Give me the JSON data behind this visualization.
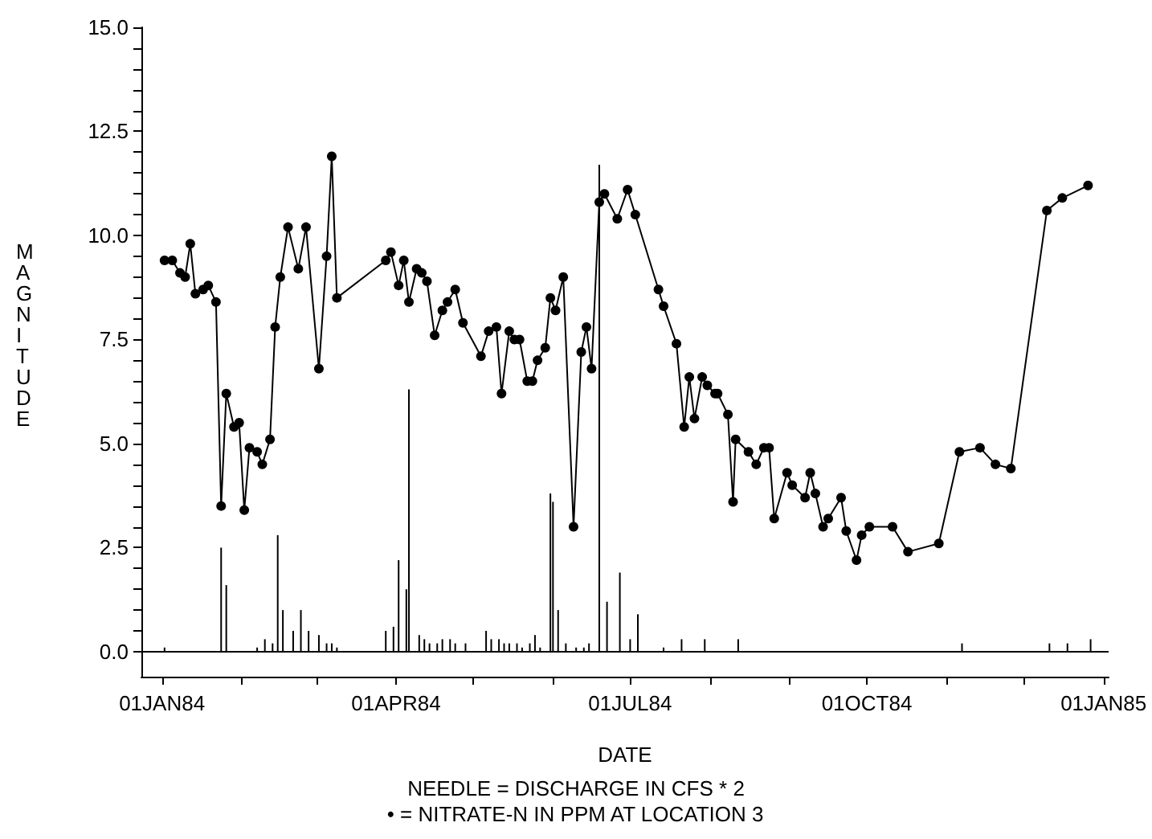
{
  "chart_data": {
    "type": "line",
    "xlabel": "DATE",
    "ylabel": "MAGNITUDE",
    "annotations": [
      "NEEDLE = DISCHARGE IN CFS * 2",
      "• = NITRATE-N IN PPM AT LOCATION 3"
    ],
    "xlim": [
      "1983-12-24",
      "1985-01-03"
    ],
    "xticks": [
      {
        "value": "1984-01-01",
        "label": "01JAN84"
      },
      {
        "value": "1984-02-01",
        "label": null
      },
      {
        "value": "1984-03-01",
        "label": null
      },
      {
        "value": "1984-04-01",
        "label": "01APR84"
      },
      {
        "value": "1984-05-01",
        "label": null
      },
      {
        "value": "1984-06-01",
        "label": null
      },
      {
        "value": "1984-07-01",
        "label": "01JUL84"
      },
      {
        "value": "1984-08-01",
        "label": null
      },
      {
        "value": "1984-09-01",
        "label": null
      },
      {
        "value": "1984-10-01",
        "label": "01OCT84"
      },
      {
        "value": "1984-11-01",
        "label": null
      },
      {
        "value": "1984-12-01",
        "label": null
      },
      {
        "value": "1985-01-01",
        "label": "01JAN85"
      }
    ],
    "ylim": [
      -0.6,
      15
    ],
    "yticks": [
      {
        "value": 0,
        "label": "0.0"
      },
      {
        "value": 0.5,
        "label": null
      },
      {
        "value": 1,
        "label": null
      },
      {
        "value": 1.5,
        "label": null
      },
      {
        "value": 2,
        "label": null
      },
      {
        "value": 2.5,
        "label": "2.5"
      },
      {
        "value": 3,
        "label": null
      },
      {
        "value": 3.5,
        "label": null
      },
      {
        "value": 4,
        "label": null
      },
      {
        "value": 4.5,
        "label": null
      },
      {
        "value": 5,
        "label": "5.0"
      },
      {
        "value": 5.5,
        "label": null
      },
      {
        "value": 6,
        "label": null
      },
      {
        "value": 6.5,
        "label": null
      },
      {
        "value": 7,
        "label": null
      },
      {
        "value": 7.5,
        "label": "7.5"
      },
      {
        "value": 8,
        "label": null
      },
      {
        "value": 8.5,
        "label": null
      },
      {
        "value": 9,
        "label": null
      },
      {
        "value": 9.5,
        "label": null
      },
      {
        "value": 10,
        "label": "10.0"
      },
      {
        "value": 10.5,
        "label": null
      },
      {
        "value": 11,
        "label": null
      },
      {
        "value": 11.5,
        "label": null
      },
      {
        "value": 12,
        "label": null
      },
      {
        "value": 12.5,
        "label": "12.5"
      },
      {
        "value": 13,
        "label": null
      },
      {
        "value": 13.5,
        "label": null
      },
      {
        "value": 14,
        "label": null
      },
      {
        "value": 14.5,
        "label": null
      },
      {
        "value": 15,
        "label": "15.0"
      }
    ],
    "grid": false,
    "ref_lines": [
      {
        "axis": "y",
        "value": 0,
        "color": "#000000"
      }
    ],
    "series": [
      {
        "type": "bar",
        "color": "#000000",
        "x": [
          "1984-01-02",
          "1984-01-24",
          "1984-01-26",
          "1984-02-07",
          "1984-02-10",
          "1984-02-13",
          "1984-02-15",
          "1984-02-17",
          "1984-02-21",
          "1984-02-24",
          "1984-02-27",
          "1984-03-02",
          "1984-03-05",
          "1984-03-07",
          "1984-03-09",
          "1984-03-28",
          "1984-03-31",
          "1984-04-02",
          "1984-04-05",
          "1984-04-06",
          "1984-04-10",
          "1984-04-12",
          "1984-04-14",
          "1984-04-17",
          "1984-04-19",
          "1984-04-22",
          "1984-04-24",
          "1984-04-28",
          "1984-05-06",
          "1984-05-08",
          "1984-05-11",
          "1984-05-13",
          "1984-05-15",
          "1984-05-18",
          "1984-05-20",
          "1984-05-23",
          "1984-05-25",
          "1984-05-27",
          "1984-05-31",
          "1984-06-01",
          "1984-06-03",
          "1984-06-06",
          "1984-06-10",
          "1984-06-13",
          "1984-06-15",
          "1984-06-19",
          "1984-06-22",
          "1984-06-27",
          "1984-07-01",
          "1984-07-04",
          "1984-07-14",
          "1984-07-21",
          "1984-07-30",
          "1984-08-12",
          "1984-11-07",
          "1984-12-11",
          "1984-12-18",
          "1984-12-27"
        ],
        "values": [
          0.1,
          2.5,
          1.6,
          0.1,
          0.3,
          0.2,
          2.8,
          1.0,
          0.5,
          1.0,
          0.5,
          0.4,
          0.2,
          0.2,
          0.1,
          0.5,
          0.6,
          2.2,
          1.5,
          6.3,
          0.4,
          0.3,
          0.2,
          0.2,
          0.3,
          0.3,
          0.2,
          0.2,
          0.5,
          0.3,
          0.3,
          0.2,
          0.2,
          0.2,
          0.1,
          0.2,
          0.4,
          0.1,
          3.8,
          3.6,
          1.0,
          0.2,
          0.1,
          0.1,
          0.2,
          11.7,
          1.2,
          1.9,
          0.3,
          0.9,
          0.1,
          0.3,
          0.3,
          0.3,
          0.2,
          0.2,
          0.2,
          0.3
        ]
      },
      {
        "color": "#000000",
        "marker": "circle",
        "line_style": "solid",
        "x": [
          "1984-01-02",
          "1984-01-05",
          "1984-01-08",
          "1984-01-10",
          "1984-01-12",
          "1984-01-14",
          "1984-01-17",
          "1984-01-19",
          "1984-01-22",
          "1984-01-24",
          "1984-01-26",
          "1984-01-29",
          "1984-01-31",
          "1984-02-02",
          "1984-02-04",
          "1984-02-07",
          "1984-02-09",
          "1984-02-12",
          "1984-02-14",
          "1984-02-16",
          "1984-02-19",
          "1984-02-23",
          "1984-02-26",
          "1984-03-02",
          "1984-03-05",
          "1984-03-07",
          "1984-03-09",
          "1984-03-28",
          "1984-03-30",
          "1984-04-02",
          "1984-04-04",
          "1984-04-06",
          "1984-04-09",
          "1984-04-11",
          "1984-04-13",
          "1984-04-16",
          "1984-04-19",
          "1984-04-21",
          "1984-04-24",
          "1984-04-27",
          "1984-05-04",
          "1984-05-07",
          "1984-05-10",
          "1984-05-12",
          "1984-05-15",
          "1984-05-17",
          "1984-05-19",
          "1984-05-22",
          "1984-05-24",
          "1984-05-26",
          "1984-05-29",
          "1984-05-31",
          "1984-06-02",
          "1984-06-05",
          "1984-06-09",
          "1984-06-12",
          "1984-06-14",
          "1984-06-16",
          "1984-06-19",
          "1984-06-21",
          "1984-06-26",
          "1984-06-30",
          "1984-07-03",
          "1984-07-12",
          "1984-07-14",
          "1984-07-19",
          "1984-07-22",
          "1984-07-24",
          "1984-07-26",
          "1984-07-29",
          "1984-07-31",
          "1984-08-03",
          "1984-08-04",
          "1984-08-08",
          "1984-08-10",
          "1984-08-11",
          "1984-08-16",
          "1984-08-19",
          "1984-08-22",
          "1984-08-24",
          "1984-08-26",
          "1984-08-31",
          "1984-09-02",
          "1984-09-07",
          "1984-09-09",
          "1984-09-11",
          "1984-09-14",
          "1984-09-16",
          "1984-09-21",
          "1984-09-23",
          "1984-09-27",
          "1984-09-29",
          "1984-10-02",
          "1984-10-11",
          "1984-10-17",
          "1984-10-29",
          "1984-11-06",
          "1984-11-14",
          "1984-11-20",
          "1984-11-26",
          "1984-12-10",
          "1984-12-16",
          "1984-12-26"
        ],
        "values": [
          9.4,
          9.4,
          9.1,
          9.0,
          9.8,
          8.6,
          8.7,
          8.8,
          8.4,
          3.5,
          6.2,
          5.4,
          5.5,
          3.4,
          4.9,
          4.8,
          4.5,
          5.1,
          7.8,
          9.0,
          10.2,
          9.2,
          10.2,
          6.8,
          9.5,
          11.9,
          8.5,
          9.4,
          9.6,
          8.8,
          9.4,
          8.4,
          9.2,
          9.1,
          8.9,
          7.6,
          8.2,
          8.4,
          8.7,
          7.9,
          7.1,
          7.7,
          7.8,
          6.2,
          7.7,
          7.5,
          7.5,
          6.5,
          6.5,
          7.0,
          7.3,
          8.5,
          8.2,
          9.0,
          3.0,
          7.2,
          7.8,
          6.8,
          10.8,
          11.0,
          10.4,
          11.1,
          10.5,
          8.7,
          8.3,
          7.4,
          5.4,
          6.6,
          5.6,
          6.6,
          6.4,
          6.2,
          6.2,
          5.7,
          3.6,
          5.1,
          4.8,
          4.5,
          4.9,
          4.9,
          3.2,
          4.3,
          4.0,
          3.7,
          4.3,
          3.8,
          3.0,
          3.2,
          3.7,
          2.9,
          2.2,
          2.8,
          3.0,
          3.0,
          2.4,
          2.6,
          4.8,
          4.9,
          4.5,
          4.4,
          10.6,
          10.9,
          11.2
        ]
      }
    ]
  }
}
